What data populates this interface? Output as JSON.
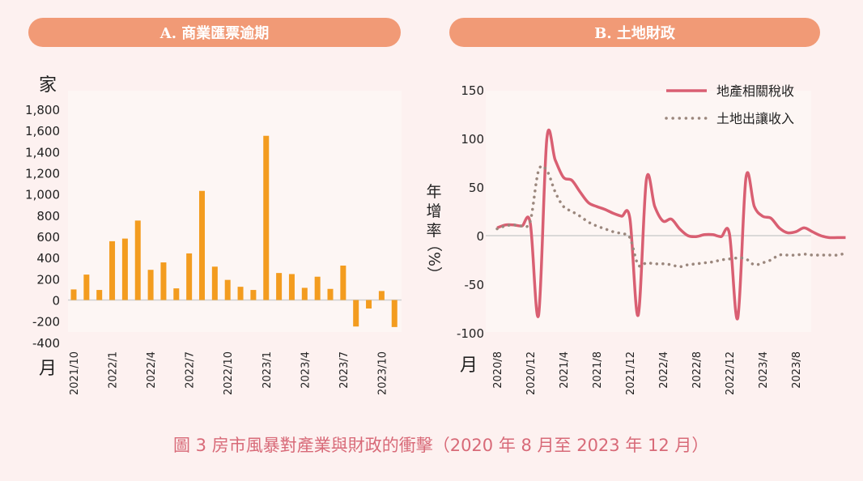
{
  "caption": "圖 3  房市風暴對產業與財政的衝擊（2020 年 8 月至 2023 年 12 月）",
  "chart_data": [
    {
      "type": "bar",
      "title": "A. 商業匯票逾期",
      "ylabel": "家",
      "xlabel": "月",
      "ylim": [
        -400,
        1800
      ],
      "yticks": [
        -400,
        -200,
        0,
        200,
        400,
        600,
        800,
        1000,
        1200,
        1400,
        1600,
        1800
      ],
      "ytick_labels": [
        "-400",
        "-200",
        "0",
        "200",
        "400",
        "600",
        "800",
        "1,000",
        "1,200",
        "1,400",
        "1,600",
        "1,800"
      ],
      "color": "#f39c1f",
      "categories": [
        "2021/10",
        "2021/11",
        "2021/12",
        "2022/1",
        "2022/2",
        "2022/3",
        "2022/4",
        "2022/5",
        "2022/6",
        "2022/7",
        "2022/8",
        "2022/9",
        "2022/10",
        "2022/11",
        "2022/12",
        "2023/1",
        "2023/2",
        "2023/3",
        "2023/4",
        "2023/5",
        "2023/6",
        "2023/7",
        "2023/8",
        "2023/9",
        "2023/10",
        "2023/11"
      ],
      "xtick_labels": [
        "2021/10",
        "2022/1",
        "2022/4",
        "2022/7",
        "2022/10",
        "2023/1",
        "2023/4",
        "2023/7",
        "2023/10"
      ],
      "values": [
        100,
        240,
        95,
        555,
        580,
        750,
        285,
        355,
        110,
        440,
        1030,
        315,
        190,
        125,
        95,
        1550,
        255,
        245,
        115,
        220,
        105,
        325,
        -250,
        -80,
        85,
        -255
      ]
    },
    {
      "type": "line",
      "title": "B. 土地財政",
      "ylabel": "年增率（%）",
      "xlabel": "月",
      "ylim": [
        -100,
        150
      ],
      "yticks": [
        -100,
        -50,
        0,
        50,
        100,
        150
      ],
      "x_start": "2020/8",
      "xtick_labels": [
        "2020/8",
        "2020/12",
        "2021/4",
        "2021/8",
        "2021/12",
        "2022/4",
        "2022/8",
        "2022/12",
        "2023/4",
        "2023/8"
      ],
      "legend_position": "top-right",
      "series": [
        {
          "name": "地產相關稅收",
          "style": "solid",
          "color": "#d95f72",
          "values": [
            8,
            11,
            11,
            10,
            13,
            -82,
            100,
            78,
            60,
            57,
            45,
            34,
            30,
            27,
            23,
            20,
            18,
            -82,
            58,
            30,
            15,
            17,
            7,
            0,
            -1,
            1,
            1,
            -1,
            2,
            -85,
            60,
            30,
            20,
            18,
            8,
            3,
            4,
            8,
            4,
            0,
            -2,
            -2,
            -2
          ]
        },
        {
          "name": "土地出讓收入",
          "style": "dotted",
          "color": "#9b877d",
          "values": [
            7,
            10,
            11,
            10,
            15,
            67,
            67,
            45,
            30,
            25,
            20,
            14,
            10,
            7,
            4,
            2,
            -2,
            -30,
            -28,
            -29,
            -29,
            -30,
            -32,
            -30,
            -29,
            -28,
            -27,
            -25,
            -24,
            -23,
            -24,
            -30,
            -28,
            -25,
            -20,
            -20,
            -20,
            -19,
            -20,
            -20,
            -20,
            -20,
            -18
          ]
        }
      ]
    }
  ]
}
